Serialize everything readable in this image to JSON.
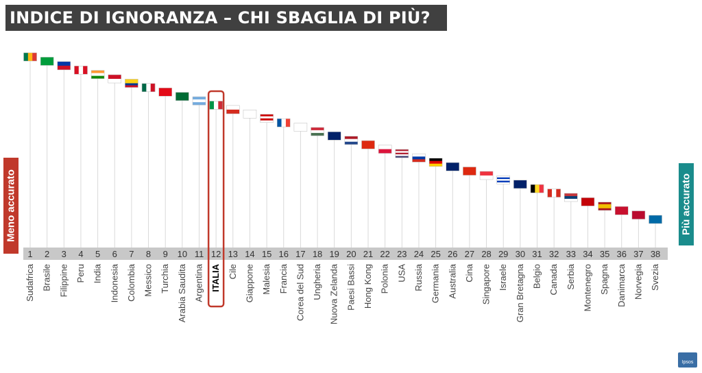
{
  "title": "INDICE DI IGNORANZA – CHI SBAGLIA DI PIÙ?",
  "left_label": "Meno accurato",
  "right_label": "Più accurato",
  "logo_text": "Ipsos",
  "colors": {
    "title_bg": "#404040",
    "left": "#c0392b",
    "right": "#1a8c8c",
    "highlight": "#c0392b",
    "axis_bar": "#c8c8c8"
  },
  "chart_data": {
    "type": "scatter",
    "ranks": [
      1,
      2,
      3,
      4,
      5,
      6,
      7,
      8,
      9,
      10,
      11,
      12,
      13,
      14,
      15,
      16,
      17,
      18,
      19,
      20,
      21,
      22,
      23,
      24,
      25,
      26,
      27,
      28,
      29,
      30,
      31,
      32,
      33,
      34,
      35,
      36,
      37,
      38
    ],
    "categories": [
      "Sudafrica",
      "Brasile",
      "Filippine",
      "Peru",
      "India",
      "Indonesia",
      "Colombia",
      "Messico",
      "Turchia",
      "Arabia Saudita",
      "Argentina",
      "ITALIA",
      "Cile",
      "Giappone",
      "Malesia",
      "Francia",
      "Corea del Sud",
      "Ungheria",
      "Nuova Zelanda",
      "Paesi Bassi",
      "Hong Kong",
      "Polonia",
      "USA",
      "Russia",
      "Germania",
      "Australia",
      "Cina",
      "Singapore",
      "Israele",
      "Gran Bretagna",
      "Belgio",
      "Canada",
      "Serbia",
      "Montenegro",
      "Spagna",
      "Danimarca",
      "Norvegia",
      "Svezia"
    ],
    "flags": [
      {
        "type": "v",
        "c": [
          "#007a4d",
          "#ffb612",
          "#de3831"
        ]
      },
      {
        "type": "solid",
        "c": [
          "#009c3b"
        ]
      },
      {
        "type": "h",
        "c": [
          "#0038a8",
          "#ce1126"
        ]
      },
      {
        "type": "v",
        "c": [
          "#d91023",
          "#ffffff",
          "#d91023"
        ]
      },
      {
        "type": "h",
        "c": [
          "#ff9933",
          "#ffffff",
          "#138808"
        ]
      },
      {
        "type": "h",
        "c": [
          "#ce1126",
          "#ffffff"
        ]
      },
      {
        "type": "h",
        "c": [
          "#fcd116",
          "#fcd116",
          "#003893",
          "#ce1126"
        ]
      },
      {
        "type": "v",
        "c": [
          "#006847",
          "#ffffff",
          "#ce1126"
        ]
      },
      {
        "type": "solid",
        "c": [
          "#e30a17"
        ]
      },
      {
        "type": "solid",
        "c": [
          "#006c35"
        ]
      },
      {
        "type": "h",
        "c": [
          "#74acdf",
          "#ffffff",
          "#74acdf"
        ]
      },
      {
        "type": "v",
        "c": [
          "#009246",
          "#ffffff",
          "#ce2b37"
        ]
      },
      {
        "type": "h",
        "c": [
          "#ffffff",
          "#d52b1e"
        ]
      },
      {
        "type": "solid",
        "c": [
          "#ffffff"
        ]
      },
      {
        "type": "h",
        "c": [
          "#cc0001",
          "#ffffff",
          "#cc0001",
          "#ffffff"
        ]
      },
      {
        "type": "v",
        "c": [
          "#0055a4",
          "#ffffff",
          "#ef4135"
        ]
      },
      {
        "type": "solid",
        "c": [
          "#ffffff"
        ]
      },
      {
        "type": "h",
        "c": [
          "#ce2939",
          "#ffffff",
          "#477050"
        ]
      },
      {
        "type": "solid",
        "c": [
          "#012169"
        ]
      },
      {
        "type": "h",
        "c": [
          "#ae1c28",
          "#ffffff",
          "#21468b"
        ]
      },
      {
        "type": "solid",
        "c": [
          "#de2910"
        ]
      },
      {
        "type": "h",
        "c": [
          "#ffffff",
          "#dc143c"
        ]
      },
      {
        "type": "h",
        "c": [
          "#b22234",
          "#ffffff",
          "#b22234",
          "#ffffff",
          "#3c3b6e"
        ]
      },
      {
        "type": "h",
        "c": [
          "#ffffff",
          "#0039a6",
          "#d52b1e"
        ]
      },
      {
        "type": "h",
        "c": [
          "#000000",
          "#dd0000",
          "#ffce00"
        ]
      },
      {
        "type": "solid",
        "c": [
          "#012169"
        ]
      },
      {
        "type": "solid",
        "c": [
          "#de2910"
        ]
      },
      {
        "type": "h",
        "c": [
          "#ef3340",
          "#ffffff"
        ]
      },
      {
        "type": "h",
        "c": [
          "#ffffff",
          "#0038b8",
          "#ffffff",
          "#0038b8",
          "#ffffff"
        ]
      },
      {
        "type": "solid",
        "c": [
          "#012169"
        ]
      },
      {
        "type": "v",
        "c": [
          "#000000",
          "#fdda24",
          "#ef3340"
        ]
      },
      {
        "type": "v",
        "c": [
          "#d52b1e",
          "#ffffff",
          "#d52b1e"
        ]
      },
      {
        "type": "h",
        "c": [
          "#c6363c",
          "#0c4076",
          "#ffffff"
        ]
      },
      {
        "type": "solid",
        "c": [
          "#c40308"
        ]
      },
      {
        "type": "h",
        "c": [
          "#aa151b",
          "#f1bf00",
          "#f1bf00",
          "#aa151b"
        ]
      },
      {
        "type": "solid",
        "c": [
          "#c8102e"
        ]
      },
      {
        "type": "solid",
        "c": [
          "#ba0c2f"
        ]
      },
      {
        "type": "solid",
        "c": [
          "#006aa7"
        ]
      }
    ],
    "highlight": "ITALIA",
    "ordering": "descending error from left to right"
  }
}
